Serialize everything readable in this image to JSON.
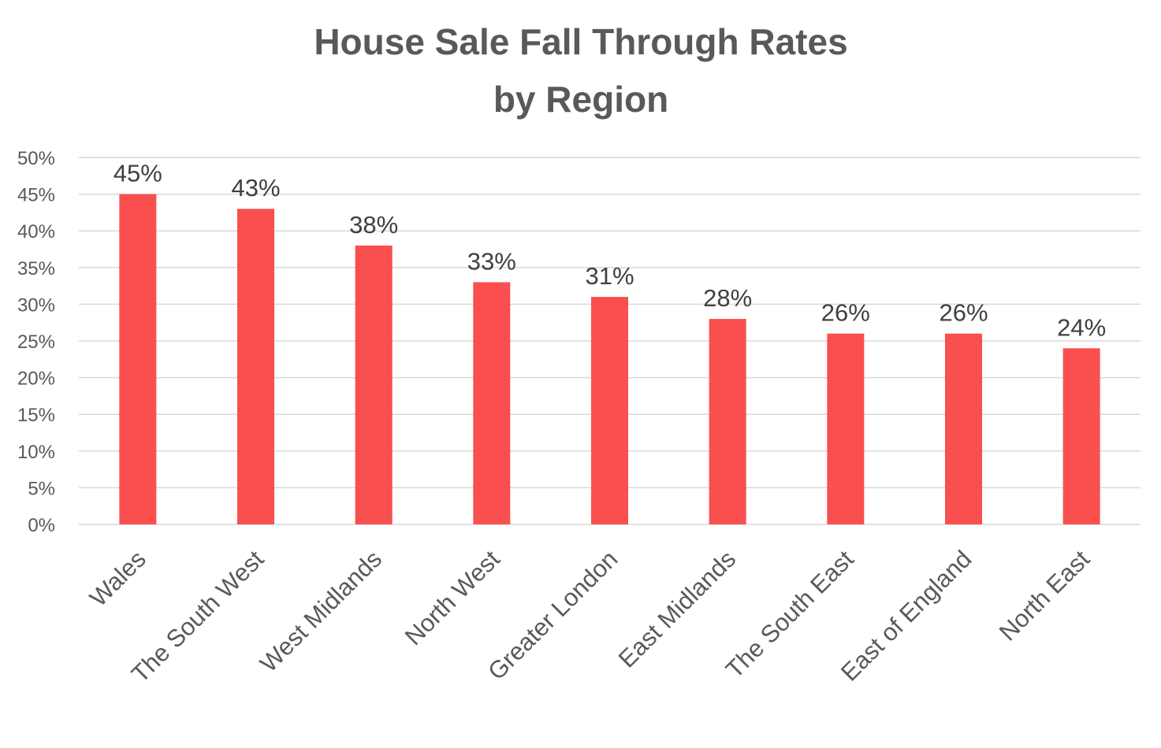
{
  "chart_data": {
    "type": "bar",
    "title": "House Sale Fall Through Rates",
    "subtitle": "by Region",
    "xlabel": "",
    "ylabel": "",
    "categories": [
      "Wales",
      "The South West",
      "West Midlands",
      "North West",
      "Greater London",
      "East Midlands",
      "The South East",
      "East of England",
      "North East"
    ],
    "values": [
      45,
      43,
      38,
      33,
      31,
      28,
      26,
      26,
      24
    ],
    "data_labels": [
      "45%",
      "43%",
      "38%",
      "33%",
      "31%",
      "28%",
      "26%",
      "26%",
      "24%"
    ],
    "ylim": [
      0,
      50
    ],
    "yticks": [
      0,
      5,
      10,
      15,
      20,
      25,
      30,
      35,
      40,
      45,
      50
    ],
    "ytick_labels": [
      "0%",
      "5%",
      "10%",
      "15%",
      "20%",
      "25%",
      "30%",
      "35%",
      "40%",
      "45%",
      "50%"
    ],
    "grid": true,
    "legend": "none",
    "bar_color": "#F94F4F",
    "grid_color": "#D9D9D9"
  }
}
